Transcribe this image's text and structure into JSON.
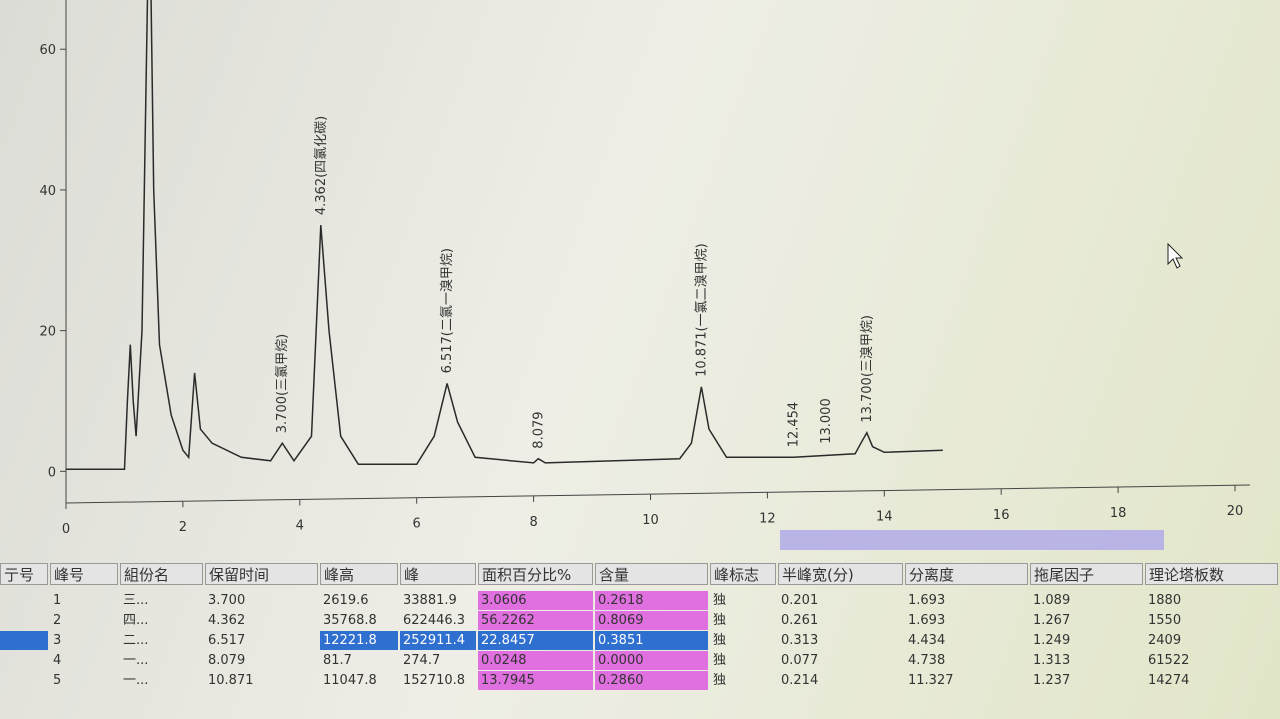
{
  "chart_data": {
    "type": "line",
    "color": "#2a2a2a",
    "x": [
      0,
      1.0,
      1.05,
      1.1,
      1.15,
      1.2,
      1.3,
      1.4,
      1.45,
      1.5,
      1.6,
      1.8,
      2.0,
      2.1,
      2.2,
      2.3,
      2.5,
      3.0,
      3.5,
      3.7,
      3.9,
      4.2,
      4.36,
      4.5,
      4.7,
      5.0,
      6.0,
      6.3,
      6.52,
      6.7,
      7.0,
      8.0,
      8.08,
      8.2,
      10.5,
      10.7,
      10.87,
      11.0,
      11.3,
      12.45,
      13.5,
      13.6,
      13.7,
      13.8,
      14.0,
      15.0
    ],
    "values": [
      0.3,
      0.3,
      10,
      18,
      10,
      5,
      20,
      70,
      70,
      40,
      18,
      8,
      3,
      2,
      14,
      6,
      4,
      2,
      1.5,
      4,
      1.5,
      5,
      35,
      20,
      5,
      1,
      1,
      5,
      12.5,
      7,
      2,
      1.2,
      1.8,
      1.2,
      1.8,
      4,
      12,
      6,
      2,
      2,
      2.5,
      4,
      5.5,
      3.5,
      2.7,
      3
    ],
    "xlim": [
      0,
      20
    ],
    "ylim": [
      -4.5,
      67
    ],
    "xticks": [
      0,
      2,
      4,
      6,
      8,
      10,
      12,
      14,
      16,
      18,
      20
    ],
    "yticks": [
      0,
      20,
      40,
      60
    ],
    "annotations": [
      {
        "x": 3.7,
        "label": "3.700(三氯甲烷)"
      },
      {
        "x": 4.36,
        "label": "4.362(四氯化碳)"
      },
      {
        "x": 6.52,
        "label": "6.517(二氯一溴甲烷)"
      },
      {
        "x": 8.08,
        "label": "8.079"
      },
      {
        "x": 10.87,
        "label": "10.871(一氯二溴甲烷)"
      },
      {
        "x": 12.45,
        "label": "12.454"
      },
      {
        "x": 13.0,
        "label": "13.000"
      },
      {
        "x": 13.7,
        "label": "13.700(三溴甲烷)"
      }
    ]
  },
  "table": {
    "headers": [
      "亍号",
      "峰号",
      "組份名",
      "保留时间",
      "峰高",
      "峰",
      "面积百分比%",
      "含量",
      "峰标志",
      "半峰宽(分)",
      "分离度",
      "拖尾因子",
      "理论塔板数"
    ],
    "rows": [
      [
        "",
        "1",
        "三...",
        "3.700",
        "2619.6",
        "33881.9",
        "3.0606",
        "0.2618",
        "独",
        "0.201",
        "1.693",
        "1.089",
        "1880"
      ],
      [
        "",
        "2",
        "四...",
        "4.362",
        "35768.8",
        "622446.3",
        "56.2262",
        "0.8069",
        "独",
        "0.261",
        "1.693",
        "1.267",
        "1550"
      ],
      [
        "",
        "3",
        "二...",
        "6.517",
        "12221.8",
        "252911.4",
        "22.8457",
        "0.3851",
        "独",
        "0.313",
        "4.434",
        "1.249",
        "2409"
      ],
      [
        "",
        "4",
        "一...",
        "8.079",
        "81.7",
        "274.7",
        "0.0248",
        "0.0000",
        "独",
        "0.077",
        "4.738",
        "1.313",
        "61522"
      ],
      [
        "",
        "5",
        "一...",
        "10.871",
        "11047.8",
        "152710.8",
        "13.7945",
        "0.2860",
        "独",
        "0.214",
        "11.327",
        "1.237",
        "14274"
      ]
    ]
  }
}
